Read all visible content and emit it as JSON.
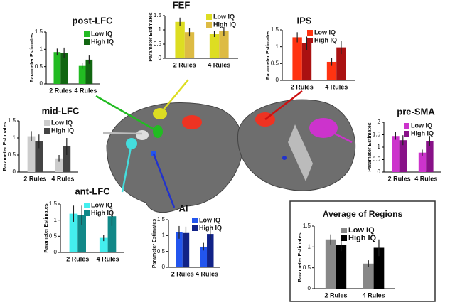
{
  "chart_data": [
    {
      "type": "bar",
      "title": "post-LFC",
      "y_label": "Parameter Estimates",
      "categories": [
        "2 Rules",
        "4 Rules"
      ],
      "ylim": [
        0,
        1.5
      ],
      "yticks": [
        0,
        0.5,
        1,
        1.5
      ],
      "series": [
        {
          "name": "Low IQ",
          "color": "#22bb22",
          "values": [
            0.92,
            0.52
          ],
          "errors": [
            0.1,
            0.08
          ]
        },
        {
          "name": "High IQ",
          "color": "#116611",
          "values": [
            0.9,
            0.7
          ],
          "errors": [
            0.15,
            0.12
          ]
        }
      ]
    },
    {
      "type": "bar",
      "title": "FEF",
      "y_label": "Parameter Estimates",
      "categories": [
        "2 Rules",
        "4 Rules"
      ],
      "ylim": [
        0,
        1.5
      ],
      "yticks": [
        0,
        0.5,
        1,
        1.5
      ],
      "series": [
        {
          "name": "Low IQ",
          "color": "#dddd22",
          "values": [
            1.28,
            0.85
          ],
          "errors": [
            0.15,
            0.1
          ]
        },
        {
          "name": "High IQ",
          "color": "#ddbb44",
          "values": [
            0.92,
            0.95
          ],
          "errors": [
            0.15,
            0.15
          ]
        }
      ]
    },
    {
      "type": "bar",
      "title": "IPS",
      "y_label": "Parameter Estimates",
      "categories": [
        "2 Rules",
        "4 Rules"
      ],
      "ylim": [
        0,
        1.5
      ],
      "yticks": [
        0,
        0.5,
        1,
        1.5
      ],
      "series": [
        {
          "name": "Low IQ",
          "color": "#ff3311",
          "values": [
            1.28,
            0.55
          ],
          "errors": [
            0.15,
            0.12
          ]
        },
        {
          "name": "High IQ",
          "color": "#aa1111",
          "values": [
            1.1,
            0.98
          ],
          "errors": [
            0.2,
            0.2
          ]
        }
      ]
    },
    {
      "type": "bar",
      "title": "mid-LFC",
      "y_label": "Parameter Estimates",
      "categories": [
        "2 Rules",
        "4 Rules"
      ],
      "ylim": [
        0,
        1.5
      ],
      "yticks": [
        0,
        0.5,
        1,
        1.5
      ],
      "series": [
        {
          "name": "Low IQ",
          "color": "#cccccc",
          "values": [
            1.05,
            0.4
          ],
          "errors": [
            0.15,
            0.1
          ]
        },
        {
          "name": "High IQ",
          "color": "#444444",
          "values": [
            0.9,
            0.75
          ],
          "errors": [
            0.2,
            0.25
          ]
        }
      ]
    },
    {
      "type": "bar",
      "title": "pre-SMA",
      "y_label": "Parameter Estimates",
      "categories": [
        "2 Rules",
        "4 Rules"
      ],
      "ylim": [
        0,
        2
      ],
      "yticks": [
        0,
        0.5,
        1,
        1.5,
        2
      ],
      "series": [
        {
          "name": "Low IQ",
          "color": "#cc33cc",
          "values": [
            1.45,
            0.78
          ],
          "errors": [
            0.15,
            0.12
          ]
        },
        {
          "name": "High IQ",
          "color": "#881188",
          "values": [
            1.28,
            1.25
          ],
          "errors": [
            0.2,
            0.2
          ]
        }
      ]
    },
    {
      "type": "bar",
      "title": "ant-LFC",
      "y_label": "Parameter Estimates",
      "categories": [
        "2 Rules",
        "4 Rules"
      ],
      "ylim": [
        0,
        1.5
      ],
      "yticks": [
        0,
        0.5,
        1,
        1.5
      ],
      "series": [
        {
          "name": "Low IQ",
          "color": "#44eeee",
          "values": [
            1.2,
            0.45
          ],
          "errors": [
            0.25,
            0.1
          ]
        },
        {
          "name": "High IQ",
          "color": "#118888",
          "values": [
            1.15,
            1.12
          ],
          "errors": [
            0.3,
            0.3
          ]
        }
      ]
    },
    {
      "type": "bar",
      "title": "AI",
      "y_label": "Parameter Estimates",
      "categories": [
        "2 Rules",
        "4 Rules"
      ],
      "ylim": [
        0,
        1.5
      ],
      "yticks": [
        0,
        0.5,
        1,
        1.5
      ],
      "series": [
        {
          "name": "Low IQ",
          "color": "#2255ee",
          "values": [
            1.1,
            0.65
          ],
          "errors": [
            0.2,
            0.12
          ]
        },
        {
          "name": "High IQ",
          "color": "#112288",
          "values": [
            1.08,
            1.05
          ],
          "errors": [
            0.2,
            0.2
          ]
        }
      ]
    },
    {
      "type": "bar",
      "title": "Average of Regions",
      "y_label": "Parameter Estimates",
      "categories": [
        "2 Rules",
        "4 Rules"
      ],
      "ylim": [
        0,
        1.5
      ],
      "yticks": [
        0,
        0.5,
        1,
        1.5
      ],
      "series": [
        {
          "name": "Low IQ",
          "color": "#888888",
          "values": [
            1.18,
            0.6
          ],
          "errors": [
            0.12,
            0.08
          ]
        },
        {
          "name": "High IQ",
          "color": "#000000",
          "values": [
            1.05,
            0.98
          ],
          "errors": [
            0.15,
            0.2
          ]
        }
      ]
    }
  ]
}
